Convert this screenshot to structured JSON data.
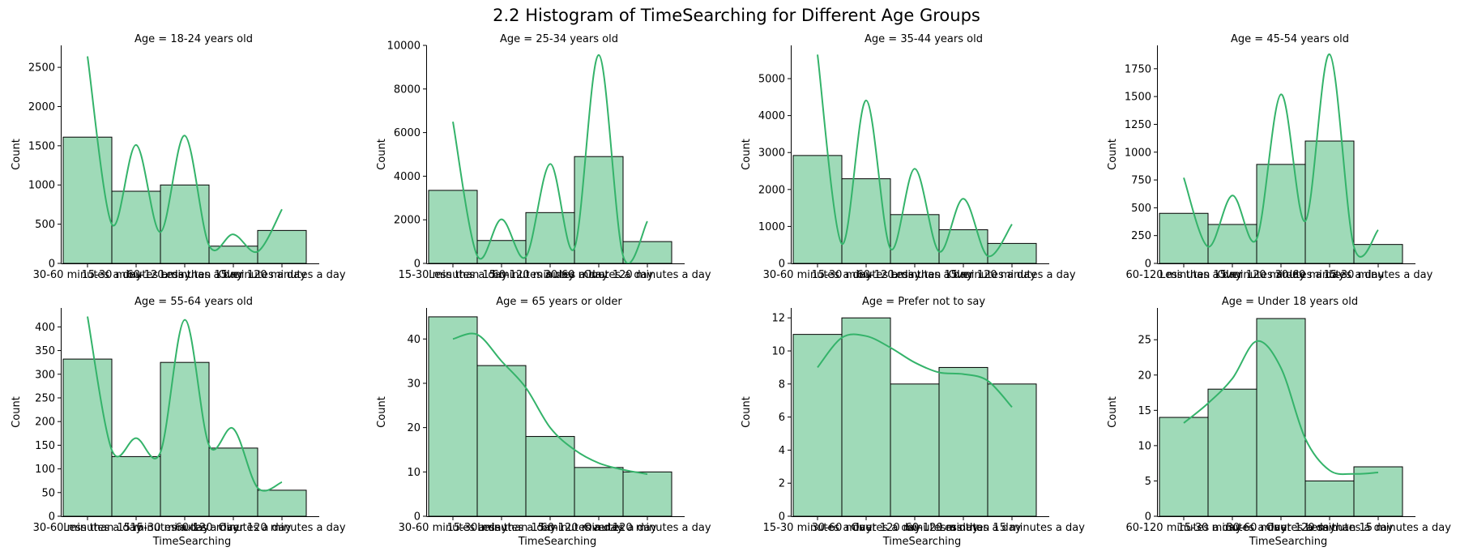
{
  "figure": {
    "title": "2.2 Histogram of TimeSearching for Different Age Groups",
    "bar_color": "#9fdab8",
    "edge_color": "#000000",
    "kde_color": "#34b36a"
  },
  "chart_data": [
    {
      "type": "bar",
      "title": "Age = 18-24 years old",
      "xlabel": "",
      "ylabel": "Count",
      "categories": [
        "30-60 minutes a day",
        "15-30 minutes a day",
        "60-120 minutes a day",
        "Less than 15 minutes a day",
        "Over 120 minutes a day"
      ],
      "values": [
        1610,
        920,
        1000,
        220,
        420
      ],
      "kde": [
        2640,
        500,
        1510,
        400,
        1630,
        230,
        370,
        150,
        690
      ],
      "ylim": [
        0,
        2780
      ],
      "yticks": [
        0,
        500,
        1000,
        1500,
        2000,
        2500
      ]
    },
    {
      "type": "bar",
      "title": "Age = 25-34 years old",
      "xlabel": "",
      "ylabel": "Count",
      "categories": [
        "15-30 minutes a day",
        "Less than 15 minutes a day",
        "60-120 minutes a day",
        "30-60 minutes a day",
        "Over 120 minutes a day"
      ],
      "values": [
        3350,
        1050,
        2330,
        4900,
        1000
      ],
      "kde": [
        6500,
        350,
        2020,
        300,
        4560,
        700,
        9560,
        350,
        1930
      ],
      "ylim": [
        0,
        10000
      ],
      "yticks": [
        0,
        2000,
        4000,
        6000,
        8000,
        10000
      ]
    },
    {
      "type": "bar",
      "title": "Age = 35-44 years old",
      "xlabel": "",
      "ylabel": "Count",
      "categories": [
        "30-60 minutes a day",
        "15-30 minutes a day",
        "60-120 minutes a day",
        "Less than 15 minutes a day",
        "Over 120 minutes a day"
      ],
      "values": [
        2920,
        2290,
        1320,
        910,
        540
      ],
      "kde": [
        5650,
        530,
        4410,
        400,
        2560,
        320,
        1750,
        200,
        1060
      ],
      "ylim": [
        0,
        5900
      ],
      "yticks": [
        0,
        1000,
        2000,
        3000,
        4000,
        5000
      ]
    },
    {
      "type": "bar",
      "title": "Age = 45-54 years old",
      "xlabel": "",
      "ylabel": "Count",
      "categories": [
        "60-120 minutes a day",
        "Less than 15 minutes a day",
        "Over 120 minutes a day",
        "30-60 minutes a day",
        "15-30 minutes a day"
      ],
      "values": [
        450,
        350,
        890,
        1100,
        170
      ],
      "kde": [
        770,
        150,
        610,
        220,
        1520,
        380,
        1880,
        150,
        300
      ],
      "ylim": [
        0,
        1960
      ],
      "yticks": [
        0,
        250,
        500,
        750,
        1000,
        1250,
        1500,
        1750
      ]
    },
    {
      "type": "bar",
      "title": "Age = 55-64 years old",
      "xlabel": "TimeSearching",
      "ylabel": "Count",
      "categories": [
        "30-60 minutes a day",
        "Less than 15 minutes a day",
        "15-30 minutes a day",
        "60-120 minutes a day",
        "Over 120 minutes a day"
      ],
      "values": [
        332,
        126,
        325,
        144,
        55
      ],
      "kde": [
        422,
        140,
        165,
        135,
        415,
        150,
        185,
        60,
        72
      ],
      "ylim": [
        0,
        440
      ],
      "yticks": [
        0,
        50,
        100,
        150,
        200,
        250,
        300,
        350,
        400
      ]
    },
    {
      "type": "bar",
      "title": "Age = 65 years or older",
      "xlabel": "TimeSearching",
      "ylabel": "Count",
      "categories": [
        "30-60 minutes a day",
        "15-30 minutes a day",
        "Less than 15 minutes a day",
        "60-120 minutes a day",
        "Over 120 minutes a day"
      ],
      "values": [
        45,
        34,
        18,
        11,
        10
      ],
      "kde": [
        40,
        41,
        35,
        29,
        20,
        15,
        12,
        10.5,
        9.5
      ],
      "ylim": [
        0,
        47
      ],
      "yticks": [
        0,
        10,
        20,
        30,
        40
      ]
    },
    {
      "type": "bar",
      "title": "Age = Prefer not to say",
      "xlabel": "TimeSearching",
      "ylabel": "Count",
      "categories": [
        "15-30 minutes a day",
        "30-60 minutes a day",
        "Over 120 minutes a day",
        "60-120 minutes a day",
        "Less than 15 minutes a day"
      ],
      "values": [
        11,
        12,
        8,
        9,
        8
      ],
      "kde": [
        9,
        10.8,
        10.9,
        10.2,
        9.3,
        8.7,
        8.6,
        8.2,
        6.6
      ],
      "ylim": [
        0,
        12.6
      ],
      "yticks": [
        0,
        2,
        4,
        6,
        8,
        10,
        12
      ]
    },
    {
      "type": "bar",
      "title": "Age = Under 18 years old",
      "xlabel": "TimeSearching",
      "ylabel": "Count",
      "categories": [
        "60-120 minutes a day",
        "15-30 minutes a day",
        "30-60 minutes a day",
        "Over 120 minutes a day",
        "Less than 15 minutes a day"
      ],
      "values": [
        14,
        18,
        28,
        5,
        7
      ],
      "kde": [
        13.2,
        16,
        19.5,
        24.8,
        21,
        11,
        6.5,
        6,
        6.2
      ],
      "ylim": [
        0,
        29.5
      ],
      "yticks": [
        0,
        5,
        10,
        15,
        20,
        25
      ]
    }
  ]
}
